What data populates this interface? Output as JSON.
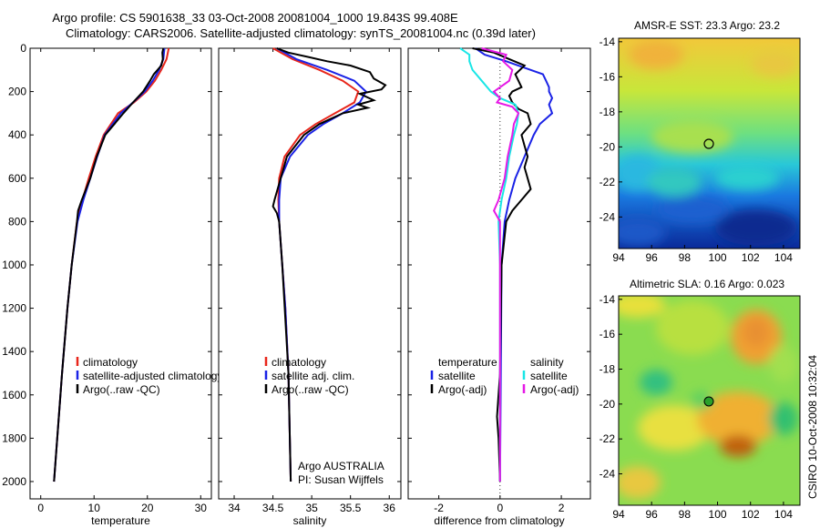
{
  "header": {
    "title_line1": "Argo profile: CS 5901638_33 03-Oct-2008 20081004_1000 19.843S 99.408E",
    "title_line2": "Climatology: CARS2006. Satellite-adjusted climatology: synTS_20081004.nc (0.39d later)"
  },
  "colors": {
    "climatology": "#e8261b",
    "satellite": "#1a22e6",
    "argo": "#000000",
    "sat_salinity": "#19e6e6",
    "argo_salinity": "#e619e6"
  },
  "chart_data": [
    {
      "type": "line",
      "id": "temperature",
      "xlabel": "temperature",
      "ylabel": "",
      "xlim": [
        -2,
        32
      ],
      "ylim": [
        2080,
        0
      ],
      "xticks": [
        0,
        10,
        20,
        30
      ],
      "yticks": [
        0,
        200,
        400,
        600,
        800,
        1000,
        1200,
        1400,
        1600,
        1800,
        2000
      ],
      "legend": [
        "climatology",
        "satellite-adjusted climatology",
        "Argo(..raw -QC)"
      ],
      "series": [
        {
          "name": "climatology",
          "color": "#e8261b",
          "depth": [
            0,
            50,
            100,
            150,
            200,
            250,
            300,
            400,
            500,
            600,
            700,
            800,
            1000,
            1200,
            1500,
            2000
          ],
          "values": [
            24.0,
            23.6,
            22.6,
            21.4,
            19.8,
            17.5,
            14.5,
            11.8,
            10.3,
            9.0,
            7.8,
            6.8,
            5.8,
            5.0,
            4.0,
            2.5
          ]
        },
        {
          "name": "satellite-adjusted climatology",
          "color": "#1a22e6",
          "depth": [
            0,
            50,
            100,
            150,
            200,
            250,
            300,
            400,
            500,
            600,
            700,
            800,
            1000,
            1200,
            1500,
            2000
          ],
          "values": [
            23.2,
            23.0,
            22.2,
            21.0,
            19.5,
            17.3,
            15.0,
            12.0,
            10.6,
            9.3,
            8.0,
            6.9,
            5.8,
            5.0,
            4.0,
            2.5
          ]
        },
        {
          "name": "Argo(..raw -QC)",
          "color": "#000000",
          "depth": [
            0,
            20,
            50,
            80,
            120,
            150,
            200,
            250,
            300,
            350,
            400,
            500,
            600,
            700,
            750,
            800,
            1000,
            1200,
            1500,
            2000
          ],
          "values": [
            23.0,
            22.8,
            22.9,
            22.6,
            21.2,
            20.5,
            19.2,
            17.3,
            15.5,
            13.8,
            12.1,
            10.5,
            9.3,
            7.7,
            7.0,
            6.8,
            5.8,
            5.0,
            4.0,
            2.5
          ]
        }
      ]
    },
    {
      "type": "line",
      "id": "salinity",
      "xlabel": "salinity",
      "ylabel": "",
      "xlim": [
        33.8,
        36.15
      ],
      "ylim": [
        2080,
        0
      ],
      "xticks": [
        34,
        34.5,
        35,
        35.5,
        36
      ],
      "yticks": [
        0,
        200,
        400,
        600,
        800,
        1000,
        1200,
        1400,
        1600,
        1800,
        2000
      ],
      "legend": [
        "climatology",
        "satellite adj. clim.",
        "Argo(..raw -QC)"
      ],
      "annotation_line1": "Argo AUSTRALIA",
      "annotation_line2": "PI: Susan Wijffels",
      "series": [
        {
          "name": "climatology",
          "color": "#e8261b",
          "depth": [
            0,
            50,
            100,
            150,
            200,
            250,
            300,
            350,
            400,
            500,
            600,
            700,
            800,
            1000,
            1200,
            1500,
            2000
          ],
          "values": [
            34.5,
            34.75,
            35.1,
            35.4,
            35.6,
            35.55,
            35.3,
            35.05,
            34.85,
            34.65,
            34.58,
            34.57,
            34.58,
            34.62,
            34.66,
            34.7,
            34.73
          ]
        },
        {
          "name": "satellite adj. clim.",
          "color": "#1a22e6",
          "depth": [
            0,
            50,
            100,
            150,
            200,
            250,
            300,
            350,
            400,
            500,
            600,
            700,
            800,
            1000,
            1200,
            1500,
            2000
          ],
          "values": [
            34.55,
            34.8,
            35.2,
            35.55,
            35.7,
            35.62,
            35.4,
            35.15,
            34.95,
            34.72,
            34.6,
            34.58,
            34.58,
            34.62,
            34.66,
            34.7,
            34.73
          ]
        },
        {
          "name": "Argo(..raw -QC)",
          "color": "#000000",
          "depth": [
            0,
            20,
            40,
            60,
            80,
            110,
            140,
            170,
            190,
            210,
            240,
            260,
            275,
            300,
            350,
            400,
            500,
            600,
            700,
            730,
            760,
            800,
            1000,
            1500,
            2000
          ],
          "values": [
            34.55,
            34.7,
            34.95,
            35.2,
            35.5,
            35.75,
            35.8,
            35.95,
            35.9,
            35.62,
            35.8,
            35.6,
            35.72,
            35.4,
            35.1,
            34.9,
            34.68,
            34.6,
            34.52,
            34.5,
            34.55,
            34.58,
            34.62,
            34.7,
            34.73
          ]
        }
      ]
    },
    {
      "type": "line",
      "id": "difference",
      "xlabel": "difference from climatology",
      "ylabel": "",
      "xlim": [
        -3,
        2.95
      ],
      "ylim": [
        2080,
        0
      ],
      "xticks": [
        -2,
        0,
        2
      ],
      "yticks": [
        0,
        200,
        400,
        600,
        800,
        1000,
        1200,
        1400,
        1600,
        1800,
        2000
      ],
      "legend_header_left": "temperature",
      "legend_header_right": "salinity",
      "legend_left": [
        "satellite",
        "Argo(-adj)"
      ],
      "legend_right": [
        "satellite",
        "Argo(-adj)"
      ],
      "series": [
        {
          "name": "temperature satellite",
          "color": "#1a22e6",
          "depth": [
            0,
            30,
            60,
            90,
            120,
            150,
            180,
            200,
            230,
            260,
            300,
            350,
            400,
            500,
            600,
            700,
            800,
            1000,
            2000
          ],
          "values": [
            -0.8,
            -0.5,
            0.2,
            0.8,
            1.4,
            1.5,
            1.6,
            1.6,
            1.7,
            1.6,
            1.7,
            1.3,
            1.1,
            0.8,
            0.5,
            0.3,
            0.15,
            0.05,
            0.0
          ]
        },
        {
          "name": "temperature Argo(-adj)",
          "color": "#000000",
          "depth": [
            0,
            20,
            50,
            80,
            120,
            150,
            180,
            200,
            220,
            250,
            280,
            300,
            350,
            400,
            450,
            500,
            550,
            600,
            650,
            700,
            750,
            800,
            1000,
            1500,
            1700,
            1800,
            2000
          ],
          "values": [
            -0.9,
            -0.2,
            0.3,
            0.8,
            0.5,
            0.6,
            0.7,
            0.4,
            0.3,
            0.4,
            0.6,
            0.9,
            1.0,
            0.7,
            0.8,
            0.9,
            0.8,
            0.9,
            1.0,
            0.7,
            0.4,
            0.2,
            0.05,
            0.0,
            -0.1,
            -0.05,
            0.0
          ]
        },
        {
          "name": "salinity satellite",
          "color": "#19e6e6",
          "depth": [
            0,
            30,
            60,
            100,
            150,
            200,
            230,
            260,
            300,
            350,
            400,
            500,
            600,
            700,
            800,
            1000,
            2000
          ],
          "values": [
            -1.3,
            -1.0,
            -1.0,
            -0.9,
            -0.6,
            -0.3,
            0.0,
            0.5,
            0.6,
            0.55,
            0.45,
            0.3,
            0.2,
            0.05,
            -0.05,
            0.0,
            0.0
          ]
        },
        {
          "name": "salinity Argo(-adj)",
          "color": "#e619e6",
          "depth": [
            0,
            30,
            60,
            100,
            150,
            200,
            230,
            250,
            270,
            300,
            350,
            400,
            500,
            600,
            700,
            750,
            800,
            1000,
            2000
          ],
          "values": [
            -0.6,
            0.2,
            0.1,
            0.4,
            0.3,
            -0.2,
            0.0,
            -0.1,
            0.4,
            0.6,
            0.45,
            0.4,
            0.25,
            0.15,
            -0.05,
            -0.2,
            0.0,
            0.0,
            0.0
          ]
        }
      ]
    },
    {
      "type": "heatmap",
      "id": "sst_map",
      "title": "AMSR-E SST: 23.3 Argo: 23.2",
      "xticks": [
        94,
        96,
        98,
        100,
        102,
        104
      ],
      "yticks": [
        -14,
        -16,
        -18,
        -20,
        -22,
        -24
      ],
      "xlim": [
        94,
        105
      ],
      "ylim": [
        -25.8,
        -13.8
      ],
      "marker_lon": 99.408,
      "marker_lat": -19.843,
      "marker_style": "open circle"
    },
    {
      "type": "heatmap",
      "id": "sla_map",
      "title": "Altimetric SLA: 0.16 Argo: 0.023",
      "xticks": [
        94,
        96,
        98,
        100,
        102,
        104
      ],
      "yticks": [
        -14,
        -16,
        -18,
        -20,
        -22,
        -24
      ],
      "xlim": [
        94,
        105
      ],
      "ylim": [
        -25.8,
        -13.8
      ],
      "marker_lon": 99.408,
      "marker_lat": -19.843,
      "marker_style": "filled green circle"
    }
  ],
  "footer": {
    "credit": "CSIRO 10-Oct-2008 10:32:04"
  }
}
